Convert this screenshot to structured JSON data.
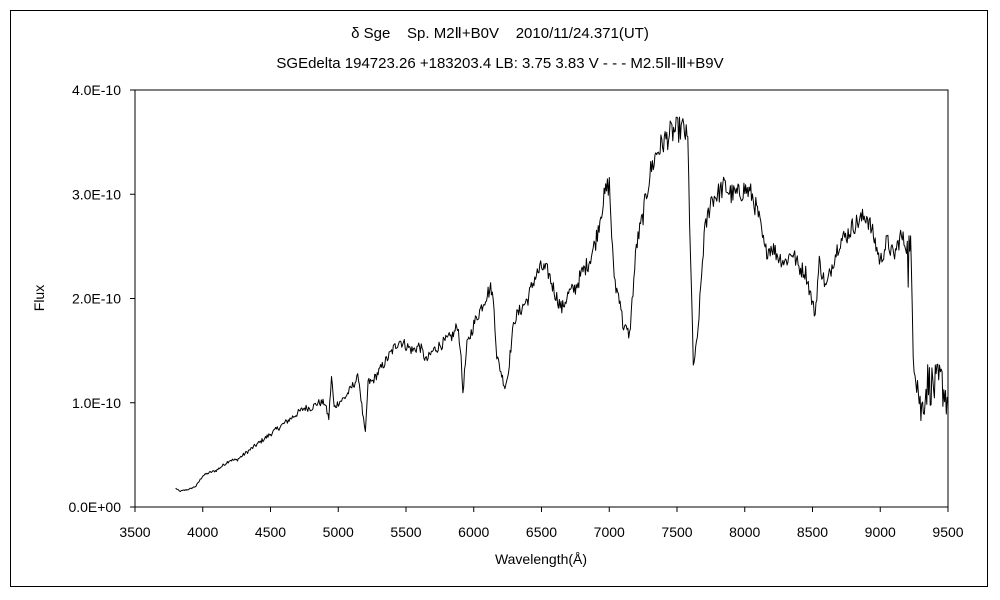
{
  "chart_data": {
    "type": "line",
    "title": "δ Sge    Sp. M2Ⅱ+B0V    2010/11/24.371(UT)",
    "subtitle": "SGEdelta 194723.26 +183203.4 LB: 3.75 3.83 V - - - M2.5Ⅱ-Ⅲ+B9V",
    "xlabel": "Wavelength(Å)",
    "ylabel": "Flux",
    "xlim": [
      3500,
      9500
    ],
    "ylim": [
      0,
      4e-10
    ],
    "x_ticks": [
      "3500",
      "4000",
      "4500",
      "5000",
      "5500",
      "6000",
      "6500",
      "7000",
      "7500",
      "8000",
      "8500",
      "9000",
      "9500"
    ],
    "y_ticks": [
      "0.0E+00",
      "1.0E-10",
      "2.0E-10",
      "3.0E-10",
      "4.0E-10"
    ],
    "grid": false,
    "legend": "none",
    "line_color": "#000000",
    "series": [
      {
        "x": [
          3800,
          3830,
          3860,
          3900,
          3950,
          4000,
          4050,
          4100,
          4150,
          4200,
          4250,
          4300,
          4350,
          4400,
          4450,
          4500,
          4550,
          4600,
          4650,
          4700,
          4750,
          4800,
          4850,
          4900,
          4930,
          4950,
          4970,
          5000,
          5050,
          5100,
          5150,
          5180,
          5200,
          5220,
          5250,
          5300,
          5350,
          5400,
          5450,
          5500,
          5550,
          5600,
          5650,
          5700,
          5750,
          5800,
          5850,
          5880,
          5900,
          5920,
          5950,
          6000,
          6050,
          6100,
          6130,
          6150,
          6170,
          6200,
          6230,
          6250,
          6280,
          6300,
          6350,
          6400,
          6450,
          6500,
          6550,
          6600,
          6650,
          6700,
          6750,
          6800,
          6850,
          6900,
          6950,
          6980,
          7000,
          7030,
          7050,
          7080,
          7100,
          7150,
          7200,
          7250,
          7300,
          7350,
          7400,
          7450,
          7500,
          7550,
          7580,
          7600,
          7620,
          7650,
          7700,
          7750,
          7800,
          7850,
          7900,
          7950,
          8000,
          8050,
          8100,
          8150,
          8200,
          8250,
          8300,
          8350,
          8400,
          8450,
          8500,
          8520,
          8550,
          8600,
          8650,
          8700,
          8750,
          8800,
          8850,
          8900,
          8950,
          9000,
          9050,
          9100,
          9150,
          9200,
          9230,
          9250,
          9300,
          9350,
          9400,
          9450,
          9500
        ],
        "y": [
          1.8e-11,
          1.5e-11,
          1.6e-11,
          1.7e-11,
          2e-11,
          3e-11,
          3.3e-11,
          3.5e-11,
          4e-11,
          4.5e-11,
          4.5e-11,
          5e-11,
          5.5e-11,
          6e-11,
          6.5e-11,
          7e-11,
          7.5e-11,
          8e-11,
          8.5e-11,
          9e-11,
          9.5e-11,
          9.5e-11,
          1e-10,
          1e-10,
          8.5e-11,
          1.25e-10,
          9.5e-11,
          1e-10,
          1.05e-10,
          1.15e-10,
          1.25e-10,
          9e-11,
          7e-11,
          1.2e-10,
          1.2e-10,
          1.3e-10,
          1.4e-10,
          1.5e-10,
          1.6e-10,
          1.55e-10,
          1.5e-10,
          1.55e-10,
          1.4e-10,
          1.5e-10,
          1.55e-10,
          1.6e-10,
          1.65e-10,
          1.75e-10,
          1.55e-10,
          1.1e-10,
          1.55e-10,
          1.75e-10,
          1.9e-10,
          2.05e-10,
          2.1e-10,
          1.9e-10,
          1.45e-10,
          1.3e-10,
          1.15e-10,
          1.25e-10,
          1.6e-10,
          1.8e-10,
          1.9e-10,
          2e-10,
          2.2e-10,
          2.3e-10,
          2.25e-10,
          2.05e-10,
          1.9e-10,
          2.05e-10,
          2.1e-10,
          2.25e-10,
          2.35e-10,
          2.55e-10,
          2.9e-10,
          3.05e-10,
          3.1e-10,
          2.3e-10,
          2.1e-10,
          2e-10,
          1.75e-10,
          1.65e-10,
          2.5e-10,
          2.8e-10,
          3.2e-10,
          3.4e-10,
          3.5e-10,
          3.58e-10,
          3.62e-10,
          3.63e-10,
          3.5e-10,
          2.4e-10,
          1.35e-10,
          1.6e-10,
          2.6e-10,
          2.95e-10,
          3e-10,
          3.08e-10,
          3e-10,
          3e-10,
          3.05e-10,
          3e-10,
          2.8e-10,
          2.45e-10,
          2.5e-10,
          2.4e-10,
          2.35e-10,
          2.45e-10,
          2.3e-10,
          2.25e-10,
          1.95e-10,
          1.85e-10,
          2.35e-10,
          2.1e-10,
          2.35e-10,
          2.55e-10,
          2.6e-10,
          2.7e-10,
          2.75e-10,
          2.8e-10,
          2.6e-10,
          2.35e-10,
          2.55e-10,
          2.4e-10,
          2.6e-10,
          2.5e-10,
          2.2e-10,
          1.5e-10,
          9e-11,
          1.2e-10,
          1.15e-10,
          1.2e-10,
          1e-10
        ]
      }
    ]
  }
}
